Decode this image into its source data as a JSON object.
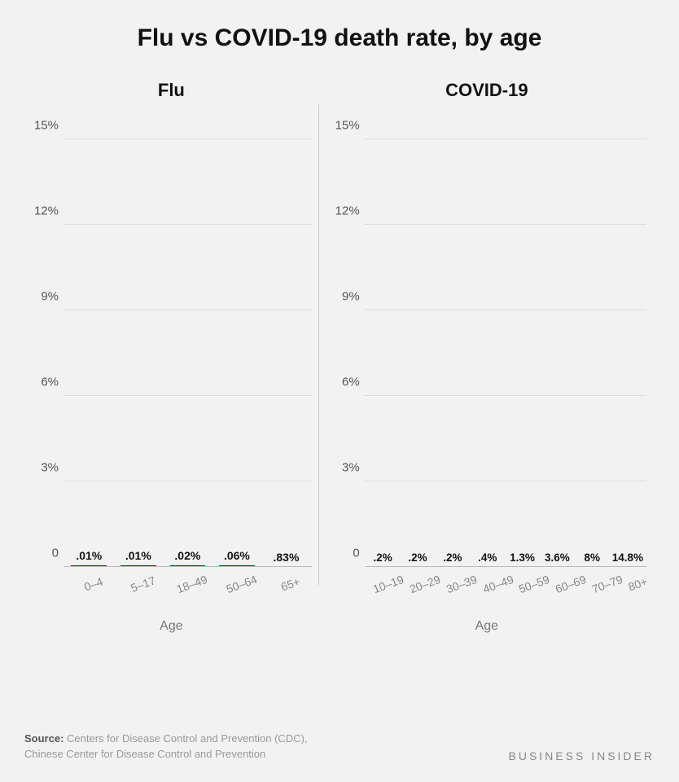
{
  "title": "Flu vs COVID-19 death rate, by age",
  "colors": {
    "bar": "#a01516",
    "background": "#f2f2f2",
    "grid": "#dcdcdc",
    "axis_text": "#555",
    "x_tick_text": "#888",
    "title_text": "#111"
  },
  "y_axis": {
    "max_pct": 16,
    "ticks": [
      {
        "value": 0,
        "label": "0"
      },
      {
        "value": 3,
        "label": "3%"
      },
      {
        "value": 6,
        "label": "6%"
      },
      {
        "value": 9,
        "label": "9%"
      },
      {
        "value": 12,
        "label": "12%"
      },
      {
        "value": 15,
        "label": "15%"
      }
    ]
  },
  "panels": {
    "flu": {
      "title": "Flu",
      "x_label": "Age",
      "data": [
        {
          "category": "0–4",
          "value_pct": 0.01,
          "label": ".01%"
        },
        {
          "category": "5–17",
          "value_pct": 0.01,
          "label": ".01%"
        },
        {
          "category": "18–49",
          "value_pct": 0.02,
          "label": ".02%"
        },
        {
          "category": "50–64",
          "value_pct": 0.06,
          "label": ".06%"
        },
        {
          "category": "65+",
          "value_pct": 0.83,
          "label": ".83%"
        }
      ]
    },
    "covid": {
      "title": "COVID-19",
      "x_label": "Age",
      "data": [
        {
          "category": "10–19",
          "value_pct": 0.2,
          "label": ".2%"
        },
        {
          "category": "20–29",
          "value_pct": 0.2,
          "label": ".2%"
        },
        {
          "category": "30–39",
          "value_pct": 0.2,
          "label": ".2%"
        },
        {
          "category": "40–49",
          "value_pct": 0.4,
          "label": ".4%"
        },
        {
          "category": "50–59",
          "value_pct": 1.3,
          "label": "1.3%"
        },
        {
          "category": "60–69",
          "value_pct": 3.6,
          "label": "3.6%"
        },
        {
          "category": "70–79",
          "value_pct": 8.0,
          "label": "8%"
        },
        {
          "category": "80+",
          "value_pct": 14.8,
          "label": "14.8%"
        }
      ]
    }
  },
  "footer": {
    "source_label": "Source:",
    "source_text_1": "Centers for Disease Control and Prevention (CDC),",
    "source_text_2": "Chinese Center for Disease Control and Prevention",
    "brand": "BUSINESS INSIDER"
  }
}
